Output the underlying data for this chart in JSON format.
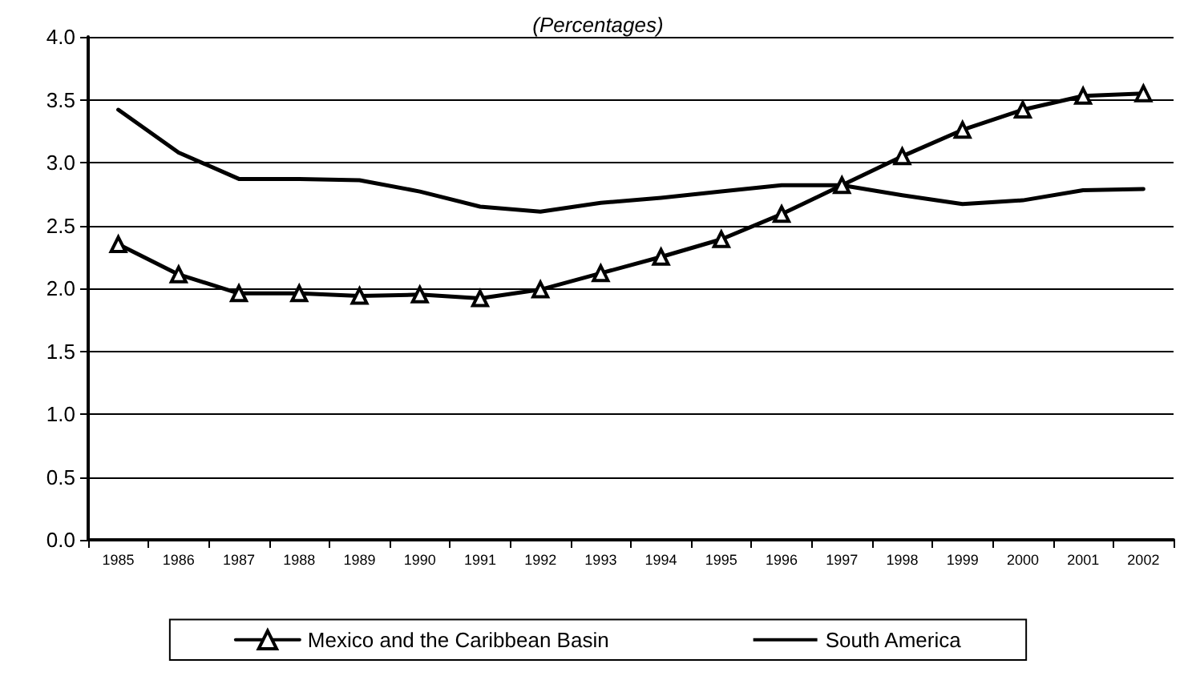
{
  "chart_data": {
    "type": "line",
    "subtitle": "(Percentages)",
    "categories": [
      "1985",
      "1986",
      "1987",
      "1988",
      "1989",
      "1990",
      "1991",
      "1992",
      "1993",
      "1994",
      "1995",
      "1996",
      "1997",
      "1998",
      "1999",
      "2000",
      "2001",
      "2002"
    ],
    "series": [
      {
        "name": "Mexico and the Caribbean Basin",
        "color": "#000000",
        "marker": "triangle",
        "values": [
          2.35,
          2.11,
          1.96,
          1.96,
          1.94,
          1.95,
          1.92,
          1.99,
          2.12,
          2.25,
          2.39,
          2.59,
          2.82,
          3.05,
          3.26,
          3.42,
          3.53,
          3.55
        ]
      },
      {
        "name": "South America",
        "color": "#000000",
        "marker": "none",
        "values": [
          3.42,
          3.08,
          2.87,
          2.87,
          2.86,
          2.77,
          2.65,
          2.61,
          2.68,
          2.72,
          2.77,
          2.82,
          2.82,
          2.74,
          2.67,
          2.7,
          2.78,
          2.79
        ]
      }
    ],
    "ylim": [
      0,
      4
    ],
    "yticks": [
      {
        "value": 0,
        "label": "0.0"
      },
      0.5,
      {
        "value": 1,
        "label": "1.0"
      },
      1.5,
      {
        "value": 2,
        "label": "2.0"
      },
      2.5,
      {
        "value": 3,
        "label": "3.0"
      },
      3.5,
      {
        "value": 4,
        "label": "4.0"
      }
    ],
    "grid": "y",
    "legend": "bottom",
    "line_style": "solid"
  }
}
